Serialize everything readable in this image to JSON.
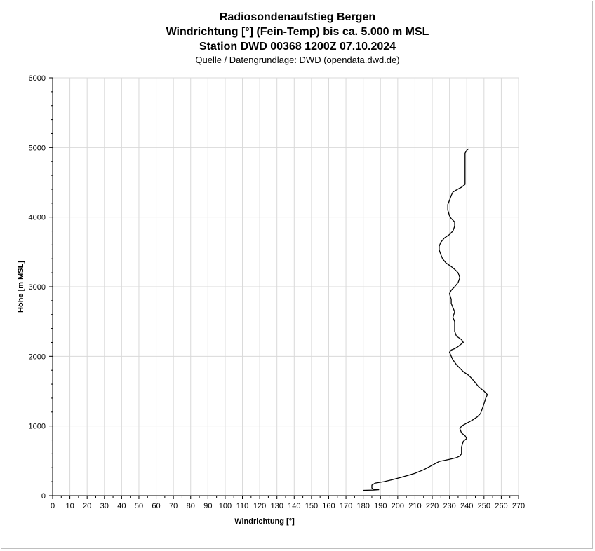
{
  "chart_data": {
    "type": "line",
    "title_lines": [
      "Radiosondenaufstieg Bergen",
      "Windrichtung [°] (Fein-Temp) bis ca. 5.000 m MSL",
      "Station DWD 00368 1200Z 07.10.2024"
    ],
    "subtitle": "Quelle / Datengrundlage: DWD (opendata.dwd.de)",
    "xlabel": "Windrichtung [°]",
    "ylabel": "Höhe [m MSL]",
    "xlim": [
      0,
      270
    ],
    "ylim": [
      0,
      6000
    ],
    "x_ticks": [
      0,
      10,
      20,
      30,
      40,
      50,
      60,
      70,
      80,
      90,
      100,
      110,
      120,
      130,
      140,
      150,
      160,
      170,
      180,
      190,
      200,
      210,
      220,
      230,
      240,
      250,
      260,
      270
    ],
    "y_ticks": [
      0,
      1000,
      2000,
      3000,
      4000,
      5000,
      6000
    ],
    "grid": true,
    "line_color": "#000000",
    "grid_color": "#d9d9d9",
    "series": [
      {
        "points": [
          [
            180,
            75
          ],
          [
            186,
            80
          ],
          [
            189,
            85
          ],
          [
            186,
            92
          ],
          [
            185,
            110
          ],
          [
            185,
            150
          ],
          [
            187,
            180
          ],
          [
            192,
            200
          ],
          [
            197,
            230
          ],
          [
            203,
            270
          ],
          [
            210,
            320
          ],
          [
            215,
            370
          ],
          [
            218,
            410
          ],
          [
            221,
            450
          ],
          [
            224,
            490
          ],
          [
            230,
            520
          ],
          [
            234,
            545
          ],
          [
            236,
            570
          ],
          [
            237,
            600
          ],
          [
            237,
            700
          ],
          [
            238,
            780
          ],
          [
            240,
            820
          ],
          [
            239,
            860
          ],
          [
            237,
            900
          ],
          [
            236,
            960
          ],
          [
            237,
            1000
          ],
          [
            240,
            1040
          ],
          [
            243,
            1080
          ],
          [
            246,
            1130
          ],
          [
            248,
            1180
          ],
          [
            249,
            1250
          ],
          [
            250,
            1320
          ],
          [
            251,
            1400
          ],
          [
            252,
            1450
          ],
          [
            250,
            1500
          ],
          [
            247,
            1560
          ],
          [
            245,
            1620
          ],
          [
            243,
            1680
          ],
          [
            241,
            1730
          ],
          [
            238,
            1780
          ],
          [
            236,
            1830
          ],
          [
            234,
            1880
          ],
          [
            232,
            1950
          ],
          [
            231,
            2000
          ],
          [
            230,
            2060
          ],
          [
            231,
            2090
          ],
          [
            233,
            2110
          ],
          [
            235,
            2140
          ],
          [
            238,
            2200
          ],
          [
            237,
            2240
          ],
          [
            234,
            2290
          ],
          [
            233,
            2360
          ],
          [
            233,
            2500
          ],
          [
            232,
            2560
          ],
          [
            233,
            2640
          ],
          [
            232,
            2700
          ],
          [
            231,
            2760
          ],
          [
            231,
            2820
          ],
          [
            230,
            2900
          ],
          [
            231,
            2950
          ],
          [
            233,
            3000
          ],
          [
            235,
            3060
          ],
          [
            236,
            3130
          ],
          [
            235,
            3200
          ],
          [
            233,
            3250
          ],
          [
            231,
            3290
          ],
          [
            228,
            3340
          ],
          [
            226,
            3400
          ],
          [
            225,
            3460
          ],
          [
            224,
            3530
          ],
          [
            224,
            3580
          ],
          [
            225,
            3640
          ],
          [
            227,
            3700
          ],
          [
            230,
            3750
          ],
          [
            232,
            3800
          ],
          [
            233,
            3870
          ],
          [
            233,
            3930
          ],
          [
            231,
            3980
          ],
          [
            230,
            4020
          ],
          [
            229,
            4100
          ],
          [
            229,
            4180
          ],
          [
            230,
            4240
          ],
          [
            231,
            4310
          ],
          [
            232,
            4360
          ],
          [
            234,
            4390
          ],
          [
            237,
            4430
          ],
          [
            239,
            4470
          ],
          [
            239,
            4600
          ],
          [
            239,
            4800
          ],
          [
            239,
            4920
          ],
          [
            240,
            4960
          ],
          [
            241,
            4980
          ]
        ]
      }
    ]
  }
}
